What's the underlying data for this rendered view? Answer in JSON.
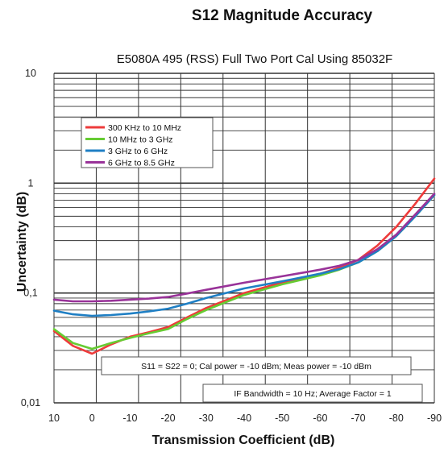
{
  "chart_data": {
    "type": "line",
    "title": "S12 Magnitude Accuracy",
    "subtitle": "E5080A 495 (RSS) Full Two Port Cal Using 85032F",
    "xlabel": "Transmission Coefficient (dB)",
    "ylabel": "Uncertainty (dB)",
    "x_ticks": [
      "10",
      "0",
      "-10",
      "-20",
      "-30",
      "-40",
      "-50",
      "-60",
      "-70",
      "-80",
      "-90"
    ],
    "y_ticks": [
      "10",
      "1",
      "0,1",
      "0,01"
    ],
    "xlim": [
      10,
      -90
    ],
    "ylim": [
      0.01,
      10
    ],
    "y_scale": "log",
    "grid": true,
    "legend_position": "top-left",
    "series": [
      {
        "name": "300 KHz to 10 MHz",
        "color": "#ee3b3b",
        "x": [
          10,
          5,
          0,
          -5,
          -10,
          -15,
          -20,
          -25,
          -30,
          -40,
          -50,
          -60,
          -65,
          -70,
          -75,
          -80,
          -85,
          -90
        ],
        "y": [
          0.045,
          0.033,
          0.028,
          0.034,
          0.04,
          0.044,
          0.049,
          0.06,
          0.073,
          0.1,
          0.125,
          0.15,
          0.17,
          0.2,
          0.27,
          0.4,
          0.65,
          1.1
        ]
      },
      {
        "name": "10 MHz to 3 GHz",
        "color": "#66cc33",
        "x": [
          10,
          5,
          0,
          -5,
          -10,
          -15,
          -20,
          -25,
          -30,
          -40,
          -50,
          -60,
          -65,
          -70,
          -75,
          -80,
          -85,
          -90
        ],
        "y": [
          0.047,
          0.035,
          0.031,
          0.035,
          0.039,
          0.043,
          0.047,
          0.058,
          0.07,
          0.096,
          0.12,
          0.145,
          0.163,
          0.19,
          0.24,
          0.33,
          0.5,
          0.78
        ]
      },
      {
        "name": "3 GHz to 6 GHz",
        "color": "#1f7fc4",
        "x": [
          10,
          5,
          0,
          -5,
          -10,
          -15,
          -20,
          -25,
          -30,
          -40,
          -50,
          -60,
          -65,
          -70,
          -75,
          -80,
          -85,
          -90
        ],
        "y": [
          0.069,
          0.064,
          0.062,
          0.063,
          0.065,
          0.068,
          0.072,
          0.08,
          0.09,
          0.11,
          0.128,
          0.15,
          0.165,
          0.19,
          0.24,
          0.33,
          0.5,
          0.78
        ]
      },
      {
        "name": "6 GHz to 8.5 GHz",
        "color": "#993399",
        "x": [
          10,
          5,
          0,
          -5,
          -10,
          -15,
          -20,
          -25,
          -30,
          -40,
          -50,
          -60,
          -65,
          -70,
          -75,
          -80,
          -85,
          -90
        ],
        "y": [
          0.087,
          0.084,
          0.084,
          0.085,
          0.087,
          0.089,
          0.092,
          0.099,
          0.107,
          0.124,
          0.142,
          0.163,
          0.177,
          0.2,
          0.25,
          0.34,
          0.52,
          0.8
        ]
      }
    ],
    "annotations": [
      "S11 = S22 = 0; Cal power = -10 dBm; Meas power = -10 dBm",
      "IF Bandwidth = 10 Hz; Average Factor = 1"
    ]
  }
}
